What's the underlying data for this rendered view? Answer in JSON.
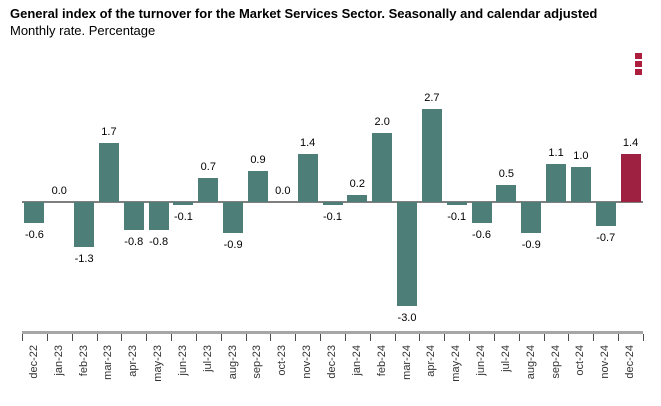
{
  "chart_data": {
    "type": "bar",
    "title": "General index of the turnover for the Market Services Sector. Seasonally and calendar adjusted",
    "subtitle": "Monthly rate. Percentage",
    "categories": [
      "dec-22",
      "jan-23",
      "feb-23",
      "mar-23",
      "apr-23",
      "may-23",
      "jun-23",
      "jul-23",
      "aug-23",
      "sep-23",
      "oct-23",
      "nov-23",
      "dec-23",
      "jan-24",
      "feb-24",
      "mar-24",
      "apr-24",
      "may-24",
      "jun-24",
      "jul-24",
      "aug-24",
      "sep-24",
      "oct-24",
      "nov-24",
      "dec-24"
    ],
    "values": [
      -0.6,
      0.0,
      -1.3,
      1.7,
      -0.8,
      -0.8,
      -0.1,
      0.7,
      -0.9,
      0.9,
      0.0,
      1.4,
      -0.1,
      0.2,
      2.0,
      -3.0,
      2.7,
      -0.1,
      -0.6,
      0.5,
      -0.9,
      1.1,
      1.0,
      -0.7,
      1.4
    ],
    "data_labels": true,
    "label_decimals": 1,
    "xlabel": "",
    "ylabel": "",
    "ylim": [
      -3.5,
      3.2
    ],
    "grid": false,
    "legend": false,
    "bar_color": "#4d7f78",
    "highlight_index": 24,
    "highlight_color": "#9e2142",
    "highlight_category": "dec-24"
  },
  "menu": {
    "icon": "kebab-menu-icon",
    "color": "#ad1e3e"
  }
}
